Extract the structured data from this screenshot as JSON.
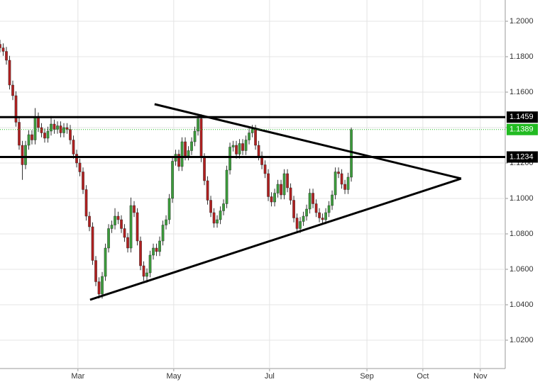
{
  "chart_data": {
    "type": "candlestick",
    "x": [
      0,
      1,
      2,
      3,
      4,
      5,
      6,
      7,
      8,
      9,
      10,
      11,
      12,
      13,
      14,
      15,
      16,
      17,
      18,
      19,
      20,
      21,
      22,
      23,
      24,
      25,
      26,
      27,
      28,
      29,
      30,
      31,
      32,
      33,
      34,
      35,
      36,
      37,
      38,
      39,
      40,
      41,
      42,
      43,
      44,
      45,
      46,
      47,
      48,
      49,
      50,
      51,
      52,
      53,
      54,
      55,
      56,
      57,
      58,
      59,
      60,
      61,
      62,
      63,
      64,
      65,
      66,
      67,
      68,
      69,
      70,
      71,
      72,
      73,
      74,
      75,
      76,
      77,
      78,
      79,
      80,
      81,
      82,
      83,
      84,
      85,
      86,
      87,
      88,
      89,
      90,
      91,
      92,
      93,
      94,
      95,
      96,
      97,
      98,
      99,
      100,
      101,
      102,
      103,
      104,
      105,
      106,
      107,
      108,
      109,
      110
    ],
    "open": [
      1.187,
      1.185,
      1.183,
      1.178,
      1.164,
      1.158,
      1.143,
      1.13,
      1.119,
      1.13,
      1.136,
      1.133,
      1.146,
      1.14,
      1.137,
      1.134,
      1.138,
      1.142,
      1.139,
      1.141,
      1.137,
      1.14,
      1.139,
      1.133,
      1.125,
      1.12,
      1.115,
      1.105,
      1.09,
      1.084,
      1.065,
      1.053,
      1.046,
      1.056,
      1.072,
      1.083,
      1.085,
      1.09,
      1.088,
      1.083,
      1.078,
      1.072,
      1.096,
      1.092,
      1.076,
      1.062,
      1.056,
      1.058,
      1.068,
      1.072,
      1.07,
      1.076,
      1.085,
      1.088,
      1.1,
      1.121,
      1.125,
      1.118,
      1.132,
      1.124,
      1.127,
      1.132,
      1.138,
      1.145,
      1.123,
      1.11,
      1.099,
      1.092,
      1.086,
      1.088,
      1.093,
      1.097,
      1.116,
      1.129,
      1.13,
      1.125,
      1.131,
      1.127,
      1.133,
      1.137,
      1.139,
      1.13,
      1.124,
      1.119,
      1.114,
      1.101,
      1.098,
      1.103,
      1.108,
      1.102,
      1.114,
      1.106,
      1.099,
      1.089,
      1.083,
      1.087,
      1.09,
      1.094,
      1.103,
      1.097,
      1.092,
      1.089,
      1.088,
      1.092,
      1.096,
      1.102,
      1.115,
      1.114,
      1.108,
      1.105,
      1.112
    ],
    "high": [
      1.1895,
      1.1875,
      1.1855,
      1.1805,
      1.1665,
      1.1605,
      1.1455,
      1.1325,
      1.1325,
      1.1385,
      1.1385,
      1.151,
      1.1485,
      1.1425,
      1.1395,
      1.1405,
      1.1465,
      1.1445,
      1.1435,
      1.1435,
      1.1425,
      1.1425,
      1.1415,
      1.1355,
      1.1275,
      1.1225,
      1.1175,
      1.1075,
      1.0925,
      1.0865,
      1.0675,
      1.0555,
      1.0585,
      1.0745,
      1.0855,
      1.0875,
      1.0945,
      1.0925,
      1.0905,
      1.0855,
      1.0805,
      1.1005,
      1.0985,
      1.0945,
      1.0785,
      1.0645,
      1.0605,
      1.0705,
      1.0745,
      1.0745,
      1.0785,
      1.0875,
      1.0905,
      1.1025,
      1.1235,
      1.1275,
      1.1275,
      1.1345,
      1.1345,
      1.1295,
      1.1345,
      1.1405,
      1.1475,
      1.1475,
      1.1255,
      1.1125,
      1.1015,
      1.0945,
      1.0905,
      1.0955,
      1.0995,
      1.1185,
      1.1315,
      1.1325,
      1.1325,
      1.1335,
      1.1335,
      1.1355,
      1.1395,
      1.1415,
      1.1415,
      1.1325,
      1.1265,
      1.1215,
      1.1165,
      1.1035,
      1.1055,
      1.1105,
      1.1105,
      1.1165,
      1.1165,
      1.1085,
      1.1015,
      1.0915,
      1.0895,
      1.0925,
      1.0965,
      1.1055,
      1.1055,
      1.0995,
      1.0945,
      1.0915,
      1.0945,
      1.0985,
      1.1045,
      1.1175,
      1.1175,
      1.1165,
      1.1105,
      1.1145,
      1.14
    ],
    "low": [
      1.1825,
      1.1805,
      1.1755,
      1.1615,
      1.1555,
      1.1405,
      1.1275,
      1.1105,
      1.1165,
      1.1275,
      1.1305,
      1.1305,
      1.1375,
      1.1345,
      1.1315,
      1.1315,
      1.1355,
      1.1365,
      1.1365,
      1.1345,
      1.1345,
      1.1365,
      1.1305,
      1.1225,
      1.1175,
      1.1125,
      1.1025,
      1.0875,
      1.0815,
      1.0625,
      1.0505,
      1.0435,
      1.0435,
      1.0535,
      1.0695,
      1.0805,
      1.0825,
      1.0855,
      1.0805,
      1.0755,
      1.0695,
      1.0695,
      1.0895,
      1.0735,
      1.0595,
      1.0535,
      1.0525,
      1.0555,
      1.0655,
      1.0675,
      1.0675,
      1.0735,
      1.0825,
      1.0855,
      1.0975,
      1.1185,
      1.1155,
      1.1155,
      1.1215,
      1.1215,
      1.1245,
      1.1295,
      1.1355,
      1.1205,
      1.1075,
      1.0965,
      1.0895,
      1.0835,
      1.0835,
      1.0855,
      1.0905,
      1.0945,
      1.1135,
      1.1265,
      1.1225,
      1.1225,
      1.1245,
      1.1245,
      1.1305,
      1.1345,
      1.1275,
      1.1215,
      1.1165,
      1.1115,
      1.0985,
      1.0955,
      1.0955,
      1.1005,
      1.0995,
      1.0995,
      1.1035,
      1.0965,
      1.0865,
      1.0805,
      1.0805,
      1.0845,
      1.0875,
      1.0915,
      1.0945,
      1.0895,
      1.0865,
      1.0855,
      1.0855,
      1.0895,
      1.0935,
      1.0995,
      1.1115,
      1.1055,
      1.1025,
      1.1025,
      1.1095
    ],
    "close": [
      1.185,
      1.183,
      1.178,
      1.164,
      1.158,
      1.143,
      1.13,
      1.119,
      1.13,
      1.136,
      1.133,
      1.146,
      1.14,
      1.137,
      1.134,
      1.138,
      1.142,
      1.139,
      1.141,
      1.137,
      1.14,
      1.139,
      1.133,
      1.125,
      1.12,
      1.115,
      1.105,
      1.09,
      1.084,
      1.065,
      1.053,
      1.046,
      1.056,
      1.072,
      1.083,
      1.085,
      1.09,
      1.088,
      1.083,
      1.078,
      1.072,
      1.096,
      1.092,
      1.076,
      1.062,
      1.056,
      1.058,
      1.068,
      1.072,
      1.07,
      1.076,
      1.085,
      1.088,
      1.1,
      1.121,
      1.125,
      1.118,
      1.132,
      1.124,
      1.127,
      1.132,
      1.138,
      1.145,
      1.123,
      1.11,
      1.099,
      1.092,
      1.086,
      1.088,
      1.093,
      1.097,
      1.116,
      1.129,
      1.13,
      1.125,
      1.131,
      1.127,
      1.133,
      1.137,
      1.139,
      1.13,
      1.124,
      1.119,
      1.114,
      1.101,
      1.098,
      1.103,
      1.108,
      1.102,
      1.114,
      1.106,
      1.099,
      1.089,
      1.083,
      1.087,
      1.09,
      1.094,
      1.103,
      1.097,
      1.092,
      1.089,
      1.088,
      1.092,
      1.096,
      1.102,
      1.115,
      1.114,
      1.108,
      1.105,
      1.112,
      1.1389
    ],
    "up_color": "#3c9c3c",
    "down_color": "#b02020",
    "xlim": [
      0,
      158.2
    ],
    "xticks": [
      {
        "value": 24.4,
        "label": "Mar"
      },
      {
        "value": 54.4,
        "label": "May"
      },
      {
        "value": 84.4,
        "label": "Jul"
      },
      {
        "value": 114.9,
        "label": "Sep"
      },
      {
        "value": 132.4,
        "label": "Oct"
      },
      {
        "value": 150.4,
        "label": "Nov"
      }
    ],
    "ylim": [
      1.004,
      1.212
    ],
    "yticks": [
      {
        "value": 1.02,
        "label": "1.0200"
      },
      {
        "value": 1.04,
        "label": "1.0400"
      },
      {
        "value": 1.06,
        "label": "1.0600"
      },
      {
        "value": 1.08,
        "label": "1.0800"
      },
      {
        "value": 1.1,
        "label": "1.1000"
      },
      {
        "value": 1.12,
        "label": "1.1200"
      },
      {
        "value": 1.14,
        "label": "1.1400"
      },
      {
        "value": 1.16,
        "label": "1.1600"
      },
      {
        "value": 1.18,
        "label": "1.1800"
      },
      {
        "value": 1.2,
        "label": "1.2000"
      }
    ],
    "grid": true,
    "levels": [
      {
        "value": 1.1459,
        "color": "#000000",
        "style": "solid"
      },
      {
        "value": 1.1389,
        "color": "#22bb22",
        "style": "dotted"
      },
      {
        "value": 1.1234,
        "color": "#000000",
        "style": "solid"
      }
    ],
    "trendlines": [
      {
        "x": [
          48.4,
          144.4
        ],
        "y": [
          1.1532,
          1.1112
        ]
      },
      {
        "x": [
          28.2,
          144.4
        ],
        "y": [
          1.0428,
          1.1112
        ]
      }
    ]
  }
}
